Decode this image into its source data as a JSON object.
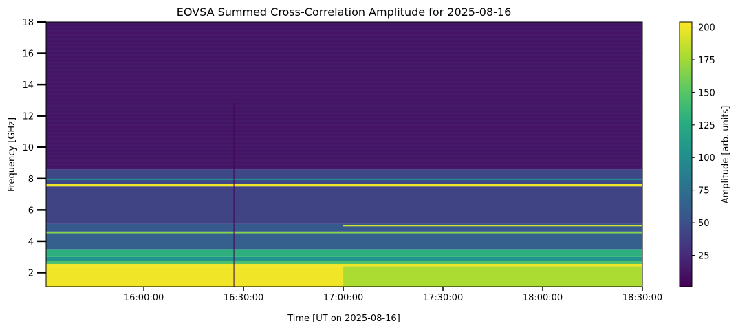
{
  "chart_data": {
    "type": "heatmap",
    "title": "EOVSA Summed Cross-Correlation Amplitude for 2025-08-16",
    "xlabel": "Time [UT on 2025-08-16]",
    "ylabel": "Frequency [GHz]",
    "xlim_minutes": [
      930.6,
      1110
    ],
    "ylim": [
      1.1,
      18.0
    ],
    "xticks": [
      {
        "label": "16:00:00",
        "minutes": 960
      },
      {
        "label": "16:30:00",
        "minutes": 990
      },
      {
        "label": "17:00:00",
        "minutes": 1020
      },
      {
        "label": "17:30:00",
        "minutes": 1050
      },
      {
        "label": "18:00:00",
        "minutes": 1080
      },
      {
        "label": "18:30:00",
        "minutes": 1110
      }
    ],
    "yticks": [
      2,
      4,
      6,
      8,
      10,
      12,
      14,
      16,
      18
    ],
    "colorbar": {
      "label": "Amplitude [arb. units]",
      "range": [
        1,
        204
      ],
      "ticks": [
        25,
        50,
        75,
        100,
        125,
        150,
        175,
        200
      ],
      "colormap": "viridis"
    },
    "bands": [
      {
        "f0": 1.1,
        "f1": 2.4,
        "t0": 930.6,
        "t1": 1020,
        "value": 200
      },
      {
        "f0": 1.1,
        "f1": 2.4,
        "t0": 1020,
        "t1": 1110,
        "value": 178
      },
      {
        "f0": 2.4,
        "f1": 2.55,
        "t0": 930.6,
        "t1": 1110,
        "value": 200
      },
      {
        "f0": 2.55,
        "f1": 2.75,
        "t0": 930.6,
        "t1": 1110,
        "value": 145
      },
      {
        "f0": 2.75,
        "f1": 3.0,
        "t0": 930.6,
        "t1": 1110,
        "value": 105
      },
      {
        "f0": 3.0,
        "f1": 3.5,
        "t0": 930.6,
        "t1": 1110,
        "value": 130
      },
      {
        "f0": 3.5,
        "f1": 4.5,
        "t0": 930.6,
        "t1": 1110,
        "value": 62
      },
      {
        "f0": 4.5,
        "f1": 4.62,
        "t0": 930.6,
        "t1": 1110,
        "value": 165
      },
      {
        "f0": 4.62,
        "f1": 5.1,
        "t0": 930.6,
        "t1": 1110,
        "value": 58
      },
      {
        "f0": 4.95,
        "f1": 5.05,
        "t0": 1020,
        "t1": 1110,
        "value": 190
      },
      {
        "f0": 5.1,
        "f1": 7.5,
        "t0": 930.6,
        "t1": 1110,
        "value": 42
      },
      {
        "f0": 7.5,
        "f1": 7.68,
        "t0": 930.6,
        "t1": 1110,
        "value": 200
      },
      {
        "f0": 7.68,
        "f1": 8.6,
        "t0": 930.6,
        "t1": 1110,
        "value": 45
      },
      {
        "f0": 7.9,
        "f1": 8.0,
        "t0": 930.6,
        "t1": 1110,
        "value": 95
      },
      {
        "f0": 8.6,
        "f1": 18.0,
        "t0": 930.6,
        "t1": 1110,
        "value": 12
      }
    ],
    "dropouts": [
      {
        "minutes": 987.0,
        "f0": 1.1,
        "f1": 12.8,
        "value": 1
      }
    ]
  }
}
